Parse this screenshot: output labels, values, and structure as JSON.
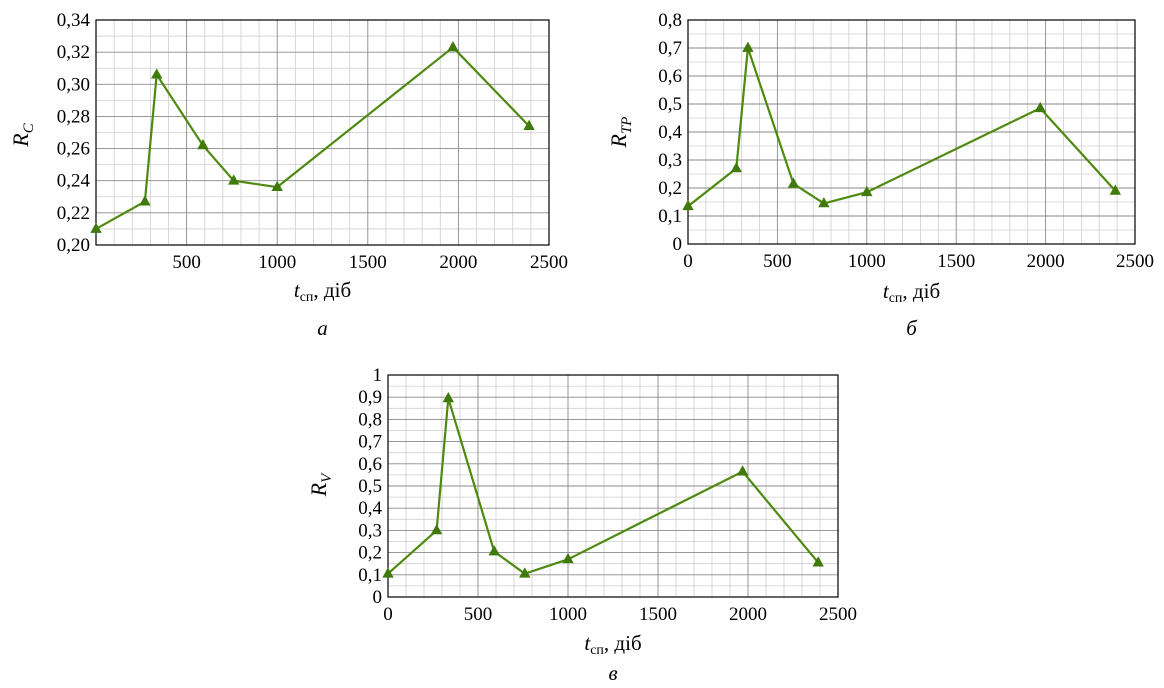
{
  "colors": {
    "series": "#4f8a10",
    "marker": "#3f7a0a"
  },
  "chart_data": [
    {
      "type": "line",
      "panel_label": "а",
      "ylabel": {
        "var": "R",
        "sub": "C"
      },
      "xlabel": {
        "var": "t",
        "sub": "сп",
        "rest": ", діб"
      },
      "xlim": [
        0,
        2500
      ],
      "ylim": [
        0.2,
        0.34
      ],
      "xticks": [
        "500",
        "1000",
        "1500",
        "2000",
        "2500"
      ],
      "xtick_values": [
        500,
        1000,
        1500,
        2000,
        2500
      ],
      "yticks": [
        "0,20",
        "0,22",
        "0,24",
        "0,26",
        "0,28",
        "0,30",
        "0,32",
        "0,34"
      ],
      "ytick_values": [
        0.2,
        0.22,
        0.24,
        0.26,
        0.28,
        0.3,
        0.32,
        0.34
      ],
      "grid": true,
      "marker": "triangle",
      "series": [
        {
          "x": [
            0,
            270,
            335,
            590,
            760,
            1000,
            1970,
            2390
          ],
          "y": [
            0.21,
            0.227,
            0.306,
            0.262,
            0.24,
            0.236,
            0.323,
            0.274
          ]
        }
      ]
    },
    {
      "type": "line",
      "panel_label": "б",
      "ylabel": {
        "var": "R",
        "sub": "TP"
      },
      "xlabel": {
        "var": "t",
        "sub": "сп",
        "rest": ", діб"
      },
      "xlim": [
        0,
        2500
      ],
      "ylim": [
        0,
        0.8
      ],
      "xticks": [
        "0",
        "500",
        "1000",
        "1500",
        "2000",
        "2500"
      ],
      "xtick_values": [
        0,
        500,
        1000,
        1500,
        2000,
        2500
      ],
      "yticks": [
        "0",
        "0,1",
        "0,2",
        "0,3",
        "0,4",
        "0,5",
        "0,6",
        "0,7",
        "0,8"
      ],
      "ytick_values": [
        0,
        0.1,
        0.2,
        0.3,
        0.4,
        0.5,
        0.6,
        0.7,
        0.8
      ],
      "grid": true,
      "marker": "triangle",
      "series": [
        {
          "x": [
            0,
            270,
            335,
            590,
            760,
            1000,
            1970,
            2390
          ],
          "y": [
            0.135,
            0.27,
            0.7,
            0.215,
            0.145,
            0.185,
            0.485,
            0.19
          ]
        }
      ]
    },
    {
      "type": "line",
      "panel_label": "в",
      "ylabel": {
        "var": "R",
        "sub": "V"
      },
      "xlabel": {
        "var": "t",
        "sub": "сп",
        "rest": ", діб"
      },
      "xlim": [
        0,
        2500
      ],
      "ylim": [
        0,
        1
      ],
      "xticks": [
        "0",
        "500",
        "1000",
        "1500",
        "2000",
        "2500"
      ],
      "xtick_values": [
        0,
        500,
        1000,
        1500,
        2000,
        2500
      ],
      "yticks": [
        "0",
        "0,1",
        "0,2",
        "0,3",
        "0,4",
        "0,5",
        "0,6",
        "0,7",
        "0,8",
        "0,9",
        "1"
      ],
      "ytick_values": [
        0,
        0.1,
        0.2,
        0.3,
        0.4,
        0.5,
        0.6,
        0.7,
        0.8,
        0.9,
        1
      ],
      "grid": true,
      "marker": "triangle",
      "series": [
        {
          "x": [
            0,
            270,
            335,
            590,
            760,
            1000,
            1970,
            2390
          ],
          "y": [
            0.105,
            0.3,
            0.895,
            0.205,
            0.105,
            0.17,
            0.565,
            0.155
          ]
        }
      ]
    }
  ]
}
